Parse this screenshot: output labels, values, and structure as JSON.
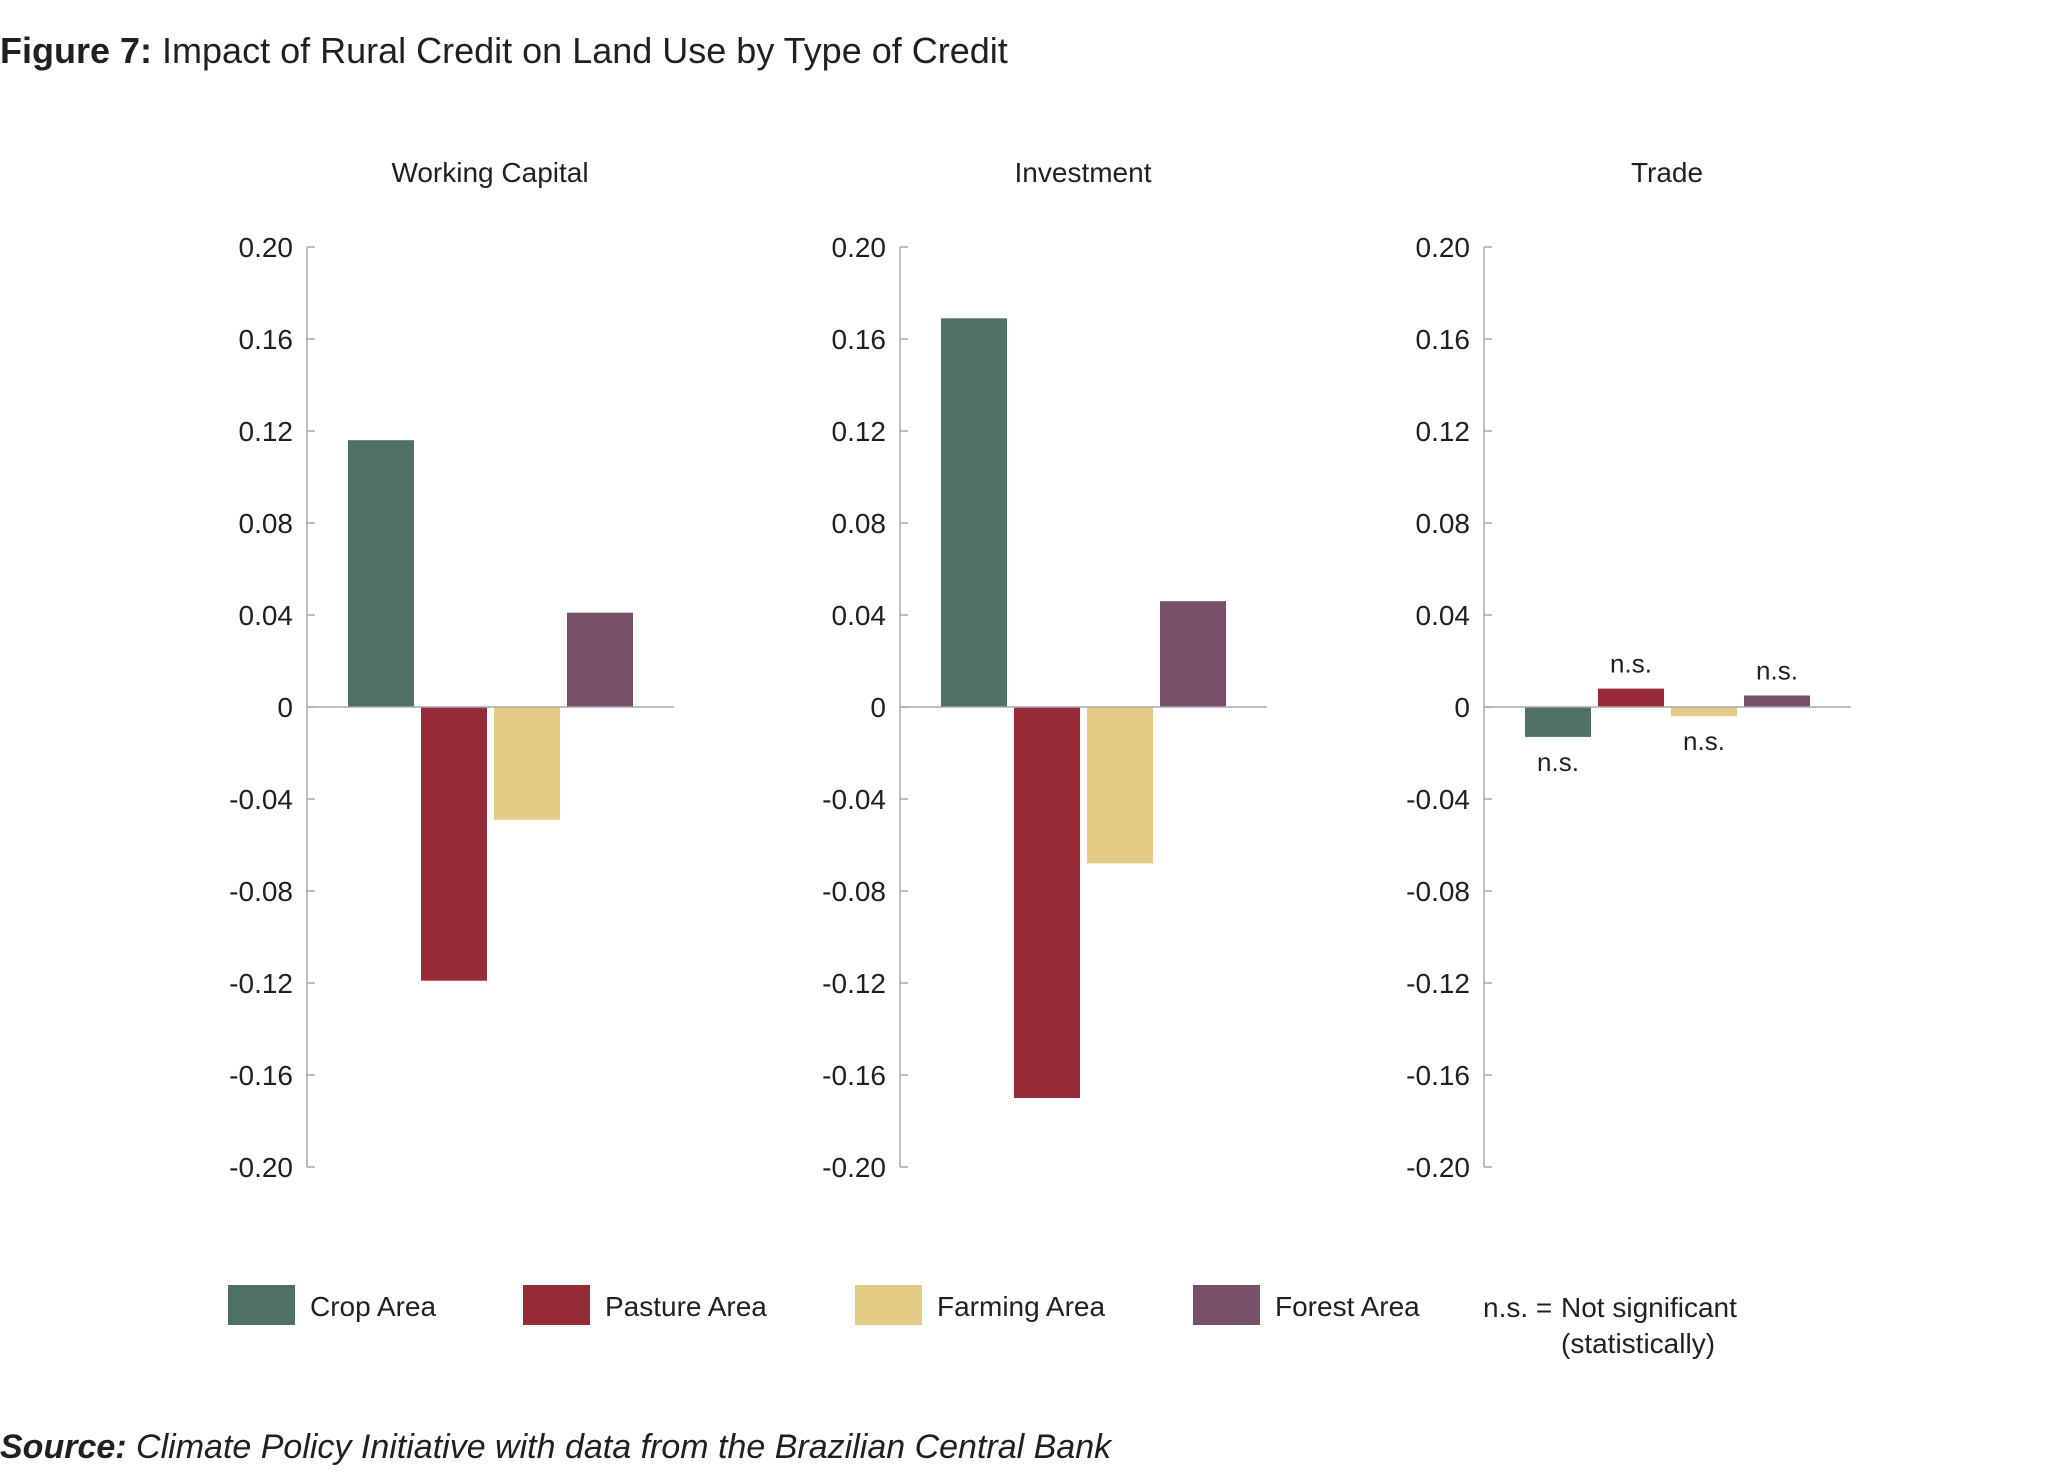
{
  "figure": {
    "label": "Figure 7:",
    "title": "Impact of Rural Credit on Land Use by Type of Credit"
  },
  "source": {
    "label": "Source:",
    "text": "Climate Policy Initiative with data from the Brazilian Central Bank"
  },
  "chart_data": {
    "type": "bar",
    "ylim": [
      -0.2,
      0.2
    ],
    "yticks": [
      "0.20",
      "0.16",
      "0.12",
      "0.08",
      "0.04",
      "0",
      "-0.04",
      "-0.08",
      "-0.12",
      "-0.16",
      "-0.20"
    ],
    "grid": false,
    "legend_position": "bottom",
    "series": [
      {
        "name": "Crop Area",
        "color": "#4f6f67"
      },
      {
        "name": "Pasture Area",
        "color": "#972b37"
      },
      {
        "name": "Farming Area",
        "color": "#e2cb85"
      },
      {
        "name": "Forest Area",
        "color": "#785069"
      }
    ],
    "panels": [
      {
        "title": "Working Capital",
        "values": [
          0.116,
          -0.119,
          -0.049,
          0.041
        ],
        "annotations": [
          "",
          "",
          "",
          ""
        ]
      },
      {
        "title": "Investment",
        "values": [
          0.169,
          -0.17,
          -0.068,
          0.046
        ],
        "annotations": [
          "",
          "",
          "",
          ""
        ]
      },
      {
        "title": "Trade",
        "values": [
          -0.013,
          0.008,
          -0.004,
          0.005
        ],
        "annotations": [
          "n.s.",
          "n.s.",
          "n.s.",
          "n.s."
        ]
      }
    ],
    "note": {
      "key": "n.s. =",
      "line1": "Not significant",
      "line2": "(statistically)"
    }
  }
}
